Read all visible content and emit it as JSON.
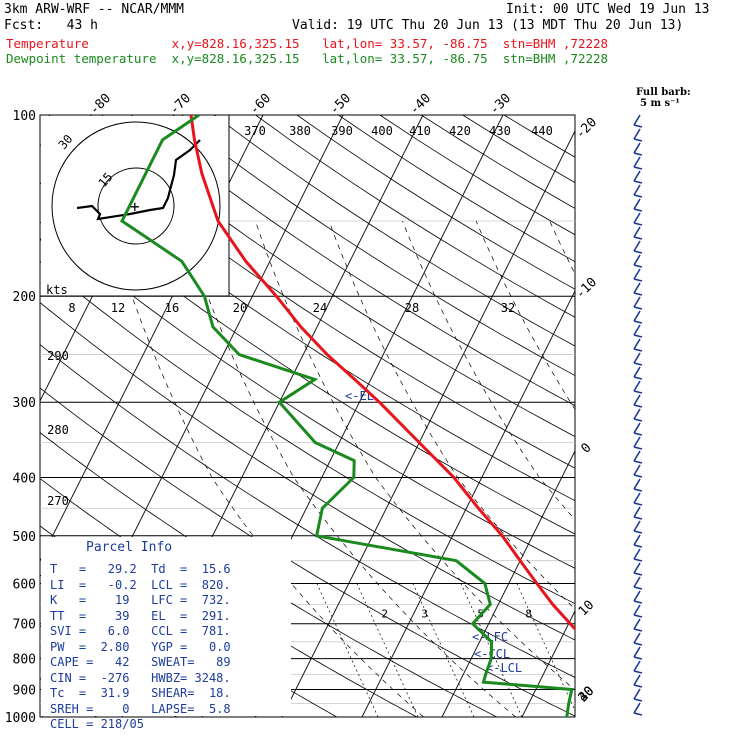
{
  "header": {
    "model": "3km ARW-WRF -- NCAR/MMM",
    "init": "Init: 00 UTC Wed 19 Jun 13",
    "fcst": "Fcst:   43 h",
    "valid": "Valid: 19 UTC Thu 20 Jun 13 (13 MDT Thu 20 Jun 13)",
    "temp_line": "Temperature           x,y=828.16,325.15   lat,lon= 33.57, -86.75  stn=BHM ,72228",
    "dew_line": "Dewpoint temperature  x,y=828.16,325.15   lat,lon= 33.57, -86.75  stn=BHM ,72228",
    "temp_color": "#e8141b",
    "dew_color": "#1a8a1f"
  },
  "barb_legend": {
    "line1": "Full barb:",
    "line2": "5 m s⁻¹"
  },
  "parcel_info": {
    "title": "Parcel Info",
    "rows": [
      "T   =   29.2  Td  =  15.6",
      "LI  =   -0.2  LCL =  820.",
      "K   =    19   LFC =  732.",
      "TT  =    39   EL  =  291.",
      "SVI =   6.0   CCL =  781.",
      "PW  =  2.80   YGP =   0.0",
      "CAPE =   42   SWEAT=   89",
      "CIN =  -276   HWBZ= 3248.",
      "Tc  =  31.9   SHEAR=  18.",
      "SREH =    0   LAPSE=  5.8",
      "CELL = 218/05"
    ]
  },
  "hodograph": {
    "speed_unit": "kts",
    "ring_labels": [
      "15",
      "30"
    ]
  },
  "level_marks": [
    "EL",
    "LFC",
    "CCL",
    "LCL"
  ],
  "chart_data": {
    "type": "line",
    "title": "",
    "y_axis": {
      "scale": "log-pressure",
      "unit": "hPa",
      "ticks": [
        100,
        200,
        300,
        400,
        500,
        600,
        700,
        800,
        900,
        1000
      ]
    },
    "isotherm_labels": [
      "-80",
      "-70",
      "-60",
      "-50",
      "-40",
      "-30",
      "-20",
      "-10",
      "0",
      "10",
      "20",
      "30",
      "40"
    ],
    "isotherm_values": [
      -80,
      -70,
      -60,
      -50,
      -40,
      -30,
      -20,
      -10,
      0,
      10,
      20,
      30,
      40
    ],
    "theta_labels_upper": [
      "370",
      "380",
      "390",
      "400",
      "410",
      "420",
      "430",
      "440"
    ],
    "theta_labels_mid": [
      "8",
      "12",
      "16",
      "20",
      "24",
      "28",
      "32"
    ],
    "theta_labels_left": [
      "290",
      "280",
      "270"
    ],
    "mixing_ratio_labels": [
      "2",
      "3",
      "5",
      "8",
      "12",
      "20"
    ],
    "series": [
      {
        "name": "Temperature",
        "color": "#e8141b",
        "points": [
          [
            1000,
            29.2
          ],
          [
            950,
            24.0
          ],
          [
            900,
            20.8
          ],
          [
            850,
            18.8
          ],
          [
            800,
            16.2
          ],
          [
            750,
            13.4
          ],
          [
            700,
            10.2
          ],
          [
            650,
            6.8
          ],
          [
            600,
            3.5
          ],
          [
            550,
            0.0
          ],
          [
            500,
            -3.8
          ],
          [
            450,
            -8.5
          ],
          [
            400,
            -13.5
          ],
          [
            350,
            -20.0
          ],
          [
            300,
            -27.5
          ],
          [
            275,
            -32.0
          ],
          [
            250,
            -37.0
          ],
          [
            225,
            -42.0
          ],
          [
            200,
            -47.0
          ],
          [
            175,
            -53.0
          ],
          [
            150,
            -59.0
          ],
          [
            125,
            -64.0
          ],
          [
            110,
            -67.0
          ],
          [
            100,
            -69.0
          ]
        ]
      },
      {
        "name": "Dewpoint temperature",
        "color": "#1a8a1f",
        "points": [
          [
            1000,
            15.6
          ],
          [
            950,
            15.0
          ],
          [
            900,
            14.5
          ],
          [
            875,
            3.0
          ],
          [
            850,
            2.8
          ],
          [
            800,
            2.5
          ],
          [
            750,
            1.5
          ],
          [
            700,
            -2.0
          ],
          [
            650,
            -1.0
          ],
          [
            600,
            -3.0
          ],
          [
            550,
            -8.0
          ],
          [
            500,
            -27.0
          ],
          [
            450,
            -28.0
          ],
          [
            400,
            -26.0
          ],
          [
            375,
            -27.0
          ],
          [
            350,
            -33.0
          ],
          [
            300,
            -40.0
          ],
          [
            275,
            -37.0
          ],
          [
            250,
            -48.0
          ],
          [
            225,
            -53.0
          ],
          [
            200,
            -56.0
          ],
          [
            175,
            -61.0
          ],
          [
            150,
            -71.0
          ],
          [
            125,
            -71.0
          ],
          [
            110,
            -71.0
          ],
          [
            100,
            -68.0
          ]
        ]
      }
    ]
  }
}
